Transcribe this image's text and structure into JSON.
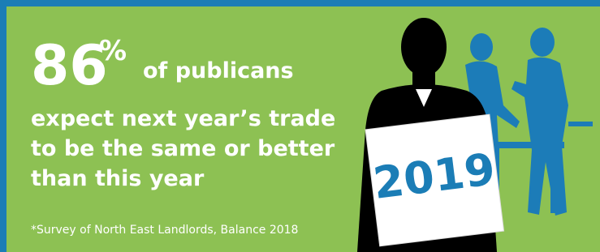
{
  "headline": {
    "number": "86",
    "unit": "%",
    "text": "of publicans"
  },
  "body": [
    "expect next year’s trade",
    "to be the same or better",
    "than this year"
  ],
  "sign": "2019",
  "footnote": "*Survey of North East Landlords, Balance 2018"
}
